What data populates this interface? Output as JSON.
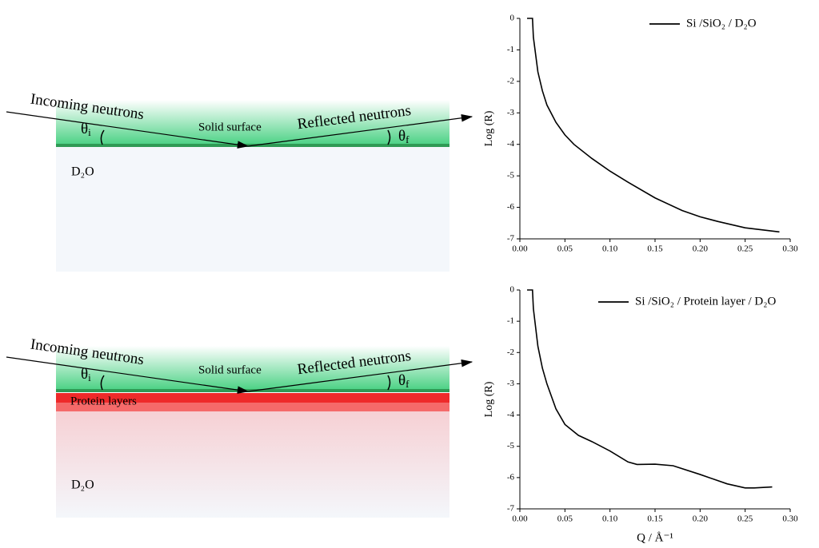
{
  "diagrams": [
    {
      "incoming": "Incoming neutrons",
      "reflected": "Reflected neutrons",
      "surface": "Solid surface",
      "theta_in": {
        "symbol": "θ",
        "sub": "i"
      },
      "theta_out": {
        "symbol": "θ",
        "sub": "f"
      },
      "medium": "D₂O"
    },
    {
      "incoming": "Incoming neutrons",
      "reflected": "Reflected neutrons",
      "surface": "Solid surface",
      "theta_in": {
        "symbol": "θ",
        "sub": "i"
      },
      "theta_out": {
        "symbol": "θ",
        "sub": "f"
      },
      "layer": "Protein layers",
      "medium": "D₂O"
    }
  ],
  "chart_data": [
    {
      "type": "line",
      "y_label": "Log (R)",
      "x": [
        0.008,
        0.014,
        0.015,
        0.02,
        0.025,
        0.03,
        0.04,
        0.05,
        0.06,
        0.08,
        0.1,
        0.12,
        0.15,
        0.18,
        0.2,
        0.22,
        0.25,
        0.288
      ],
      "series": [
        {
          "name": "Si /SiO₂ / D₂O",
          "color": "#000000",
          "values": [
            0,
            0,
            -0.6,
            -1.7,
            -2.3,
            -2.75,
            -3.3,
            -3.7,
            -4.0,
            -4.45,
            -4.85,
            -5.2,
            -5.7,
            -6.1,
            -6.3,
            -6.45,
            -6.65,
            -6.78
          ]
        }
      ],
      "xlim": [
        0,
        0.3
      ],
      "ylim": [
        -7,
        0
      ],
      "xticks": [
        {
          "value": 0,
          "label": "0.00"
        },
        {
          "value": 0.05,
          "label": "0.05"
        },
        {
          "value": 0.1,
          "label": "0.10"
        },
        {
          "value": 0.15,
          "label": "0.15"
        },
        {
          "value": 0.2,
          "label": "0.20"
        },
        {
          "value": 0.25,
          "label": "0.25"
        },
        {
          "value": 0.3,
          "label": "0.30"
        }
      ],
      "yticks": [
        0,
        -1,
        -2,
        -3,
        -4,
        -5,
        -6,
        -7
      ]
    },
    {
      "type": "line",
      "y_label": "Log (R)",
      "x_label": "Q / Å⁻¹",
      "x": [
        0.008,
        0.014,
        0.015,
        0.02,
        0.025,
        0.03,
        0.04,
        0.05,
        0.065,
        0.08,
        0.1,
        0.12,
        0.13,
        0.15,
        0.17,
        0.2,
        0.23,
        0.25,
        0.26,
        0.28
      ],
      "series": [
        {
          "name": "Si /SiO₂ / Protein layer / D₂O",
          "color": "#000000",
          "values": [
            0,
            0,
            -0.6,
            -1.8,
            -2.5,
            -3.0,
            -3.8,
            -4.3,
            -4.65,
            -4.85,
            -5.15,
            -5.5,
            -5.58,
            -5.57,
            -5.62,
            -5.9,
            -6.2,
            -6.33,
            -6.33,
            -6.3
          ]
        }
      ],
      "xlim": [
        0,
        0.3
      ],
      "ylim": [
        -7,
        0
      ],
      "xticks": [
        {
          "value": 0,
          "label": "0.00"
        },
        {
          "value": 0.05,
          "label": "0.05"
        },
        {
          "value": 0.1,
          "label": "0.10"
        },
        {
          "value": 0.15,
          "label": "0.15"
        },
        {
          "value": 0.2,
          "label": "0.20"
        },
        {
          "value": 0.25,
          "label": "0.25"
        },
        {
          "value": 0.3,
          "label": "0.30"
        }
      ],
      "yticks": [
        0,
        -1,
        -2,
        -3,
        -4,
        -5,
        -6,
        -7
      ]
    }
  ]
}
